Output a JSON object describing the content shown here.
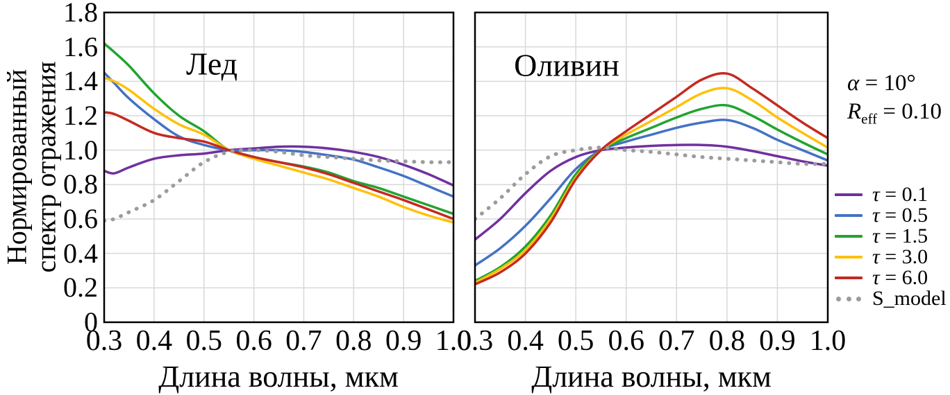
{
  "figure": {
    "y_axis_label": {
      "line1": "Нормированный",
      "line2": "спектр отражения"
    },
    "annotations": {
      "alpha_symbol": "α",
      "alpha_text": " = 10°",
      "reff_symbol": "R",
      "reff_subscript": "eff",
      "reff_value": " = 0.10"
    },
    "legend": {
      "position": "right",
      "items": [
        {
          "key": "tau-0.1",
          "symbol": "τ",
          "text": " = 0.1",
          "color": "#7030A0",
          "dotted": false
        },
        {
          "key": "tau-0.5",
          "symbol": "τ",
          "text": " = 0.5",
          "color": "#4472C4",
          "dotted": false
        },
        {
          "key": "tau-1.5",
          "symbol": "τ",
          "text": " = 1.5",
          "color": "#21A42F",
          "dotted": false
        },
        {
          "key": "tau-3.0",
          "symbol": "τ",
          "text": " = 3.0",
          "color": "#FFC008",
          "dotted": false
        },
        {
          "key": "tau-6.0",
          "symbol": "τ",
          "text": " = 6.0",
          "color": "#C42A21",
          "dotted": false
        },
        {
          "key": "s-model",
          "symbol": "",
          "text": "S_model",
          "color": "#9C9C9C",
          "dotted": true
        }
      ]
    },
    "colors": {
      "grid": "#D8D8D8",
      "border": "#000000",
      "background": "#FFFFFF"
    }
  },
  "chart_data": [
    {
      "type": "line",
      "key": "ice",
      "title": "Лед",
      "xlabel": "Длина волны, мкм",
      "ylabel": "Нормированный спектр отражения",
      "xlim": [
        0.3,
        1.0
      ],
      "ylim": [
        0,
        1.8
      ],
      "grid": true,
      "x_ticks": [
        "0.3",
        "0.4",
        "0.5",
        "0.6",
        "0.7",
        "0.8",
        "0.9",
        "1.0"
      ],
      "y_ticks": [
        "0",
        "0.2",
        "0.4",
        "0.6",
        "0.8",
        "1.0",
        "1.2",
        "1.4",
        "1.6",
        "1.8"
      ],
      "x": [
        0.3,
        0.32,
        0.35,
        0.4,
        0.45,
        0.5,
        0.55,
        0.6,
        0.65,
        0.7,
        0.75,
        0.8,
        0.85,
        0.9,
        0.95,
        1.0
      ],
      "series": [
        {
          "key": "tau-0.1",
          "name": "τ = 0.1",
          "color": "#7030A0",
          "dotted": false,
          "values": [
            0.88,
            0.865,
            0.9,
            0.95,
            0.97,
            0.98,
            1.0,
            1.01,
            1.02,
            1.02,
            1.01,
            0.99,
            0.96,
            0.915,
            0.86,
            0.795
          ]
        },
        {
          "key": "tau-0.5",
          "name": "τ = 0.5",
          "color": "#4472C4",
          "dotted": false,
          "values": [
            1.45,
            1.39,
            1.3,
            1.18,
            1.08,
            1.03,
            1.0,
            1.0,
            1.0,
            0.99,
            0.97,
            0.945,
            0.9,
            0.85,
            0.79,
            0.73
          ]
        },
        {
          "key": "tau-1.5",
          "name": "τ = 1.5",
          "color": "#21A42F",
          "dotted": false,
          "values": [
            1.62,
            1.57,
            1.49,
            1.33,
            1.2,
            1.11,
            1.0,
            0.96,
            0.93,
            0.905,
            0.87,
            0.82,
            0.78,
            0.73,
            0.68,
            0.63
          ]
        },
        {
          "key": "tau-3.0",
          "name": "τ = 3.0",
          "color": "#FFC008",
          "dotted": false,
          "values": [
            1.42,
            1.4,
            1.35,
            1.24,
            1.15,
            1.09,
            1.0,
            0.95,
            0.91,
            0.87,
            0.83,
            0.78,
            0.73,
            0.67,
            0.62,
            0.58
          ]
        },
        {
          "key": "tau-6.0",
          "name": "τ = 6.0",
          "color": "#C42A21",
          "dotted": false,
          "values": [
            1.22,
            1.21,
            1.17,
            1.1,
            1.07,
            1.05,
            1.0,
            0.96,
            0.93,
            0.9,
            0.86,
            0.81,
            0.76,
            0.71,
            0.655,
            0.6
          ]
        },
        {
          "key": "s-model",
          "name": "S_model",
          "color": "#9C9C9C",
          "dotted": true,
          "values": [
            0.59,
            0.6,
            0.64,
            0.71,
            0.82,
            0.93,
            0.99,
            1.0,
            0.99,
            0.97,
            0.96,
            0.95,
            0.94,
            0.935,
            0.93,
            0.93
          ]
        }
      ]
    },
    {
      "type": "line",
      "key": "olivine",
      "title": "Оливин",
      "xlabel": "Длина волны, мкм",
      "ylabel": "Нормированный спектр отражения",
      "xlim": [
        0.3,
        1.0
      ],
      "ylim": [
        0,
        1.8
      ],
      "grid": true,
      "x_ticks": [
        "0.3",
        "0.4",
        "0.5",
        "0.6",
        "0.7",
        "0.8",
        "0.9",
        "1.0"
      ],
      "y_ticks": [
        "0",
        "0.2",
        "0.4",
        "0.6",
        "0.8",
        "1.0",
        "1.2",
        "1.4",
        "1.6",
        "1.8"
      ],
      "x": [
        0.3,
        0.35,
        0.4,
        0.45,
        0.5,
        0.55,
        0.6,
        0.65,
        0.7,
        0.75,
        0.8,
        0.85,
        0.9,
        0.95,
        1.0
      ],
      "series": [
        {
          "key": "tau-0.1",
          "name": "τ = 0.1",
          "color": "#7030A0",
          "dotted": false,
          "values": [
            0.48,
            0.6,
            0.75,
            0.88,
            0.96,
            1.0,
            1.015,
            1.025,
            1.03,
            1.03,
            1.02,
            0.995,
            0.965,
            0.935,
            0.91
          ]
        },
        {
          "key": "tau-0.5",
          "name": "τ = 0.5",
          "color": "#4472C4",
          "dotted": false,
          "values": [
            0.33,
            0.43,
            0.56,
            0.72,
            0.89,
            1.0,
            1.05,
            1.09,
            1.13,
            1.16,
            1.175,
            1.13,
            1.06,
            1.0,
            0.94
          ]
        },
        {
          "key": "tau-1.5",
          "name": "τ = 1.5",
          "color": "#21A42F",
          "dotted": false,
          "values": [
            0.24,
            0.32,
            0.44,
            0.62,
            0.86,
            1.0,
            1.07,
            1.13,
            1.19,
            1.24,
            1.26,
            1.2,
            1.12,
            1.045,
            0.975
          ]
        },
        {
          "key": "tau-3.0",
          "name": "τ = 3.0",
          "color": "#FFC008",
          "dotted": false,
          "values": [
            0.23,
            0.31,
            0.42,
            0.6,
            0.84,
            1.0,
            1.09,
            1.17,
            1.25,
            1.33,
            1.36,
            1.29,
            1.19,
            1.1,
            1.015
          ]
        },
        {
          "key": "tau-6.0",
          "name": "τ = 6.0",
          "color": "#C42A21",
          "dotted": false,
          "values": [
            0.22,
            0.29,
            0.4,
            0.58,
            0.83,
            1.0,
            1.11,
            1.21,
            1.31,
            1.41,
            1.445,
            1.36,
            1.26,
            1.16,
            1.07
          ]
        },
        {
          "key": "s-model",
          "name": "S_model",
          "color": "#9C9C9C",
          "dotted": true,
          "values": [
            0.6,
            0.72,
            0.86,
            0.965,
            1.0,
            1.015,
            1.0,
            0.99,
            0.975,
            0.96,
            0.95,
            0.94,
            0.93,
            0.92,
            0.92
          ]
        }
      ]
    }
  ]
}
